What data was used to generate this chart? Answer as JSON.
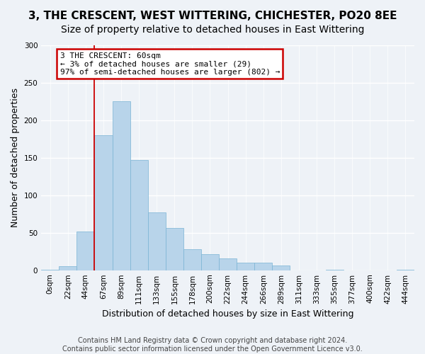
{
  "title": "3, THE CRESCENT, WEST WITTERING, CHICHESTER, PO20 8EE",
  "subtitle": "Size of property relative to detached houses in East Wittering",
  "xlabel": "Distribution of detached houses by size in East Wittering",
  "ylabel": "Number of detached properties",
  "bin_labels": [
    "0sqm",
    "22sqm",
    "44sqm",
    "67sqm",
    "89sqm",
    "111sqm",
    "133sqm",
    "155sqm",
    "178sqm",
    "200sqm",
    "222sqm",
    "244sqm",
    "266sqm",
    "289sqm",
    "311sqm",
    "333sqm",
    "355sqm",
    "377sqm",
    "400sqm",
    "422sqm",
    "444sqm"
  ],
  "bar_heights": [
    1,
    5,
    52,
    180,
    225,
    147,
    77,
    56,
    28,
    21,
    16,
    10,
    10,
    6,
    0,
    0,
    1,
    0,
    0,
    0,
    1
  ],
  "bar_color": "#b8d4ea",
  "bar_edge_color": "#7ab4d4",
  "red_line_x": 3,
  "annotation_title": "3 THE CRESCENT: 60sqm",
  "annotation_line1": "← 3% of detached houses are smaller (29)",
  "annotation_line2": "97% of semi-detached houses are larger (802) →",
  "annotation_box_color": "#ffffff",
  "annotation_box_edge_color": "#cc0000",
  "red_line_color": "#cc0000",
  "footer1": "Contains HM Land Registry data © Crown copyright and database right 2024.",
  "footer2": "Contains public sector information licensed under the Open Government Licence v3.0.",
  "ylim": [
    0,
    300
  ],
  "title_fontsize": 11,
  "subtitle_fontsize": 10,
  "axis_label_fontsize": 9,
  "tick_fontsize": 7.5,
  "annotation_fontsize": 8,
  "footer_fontsize": 7,
  "background_color": "#eef2f7"
}
